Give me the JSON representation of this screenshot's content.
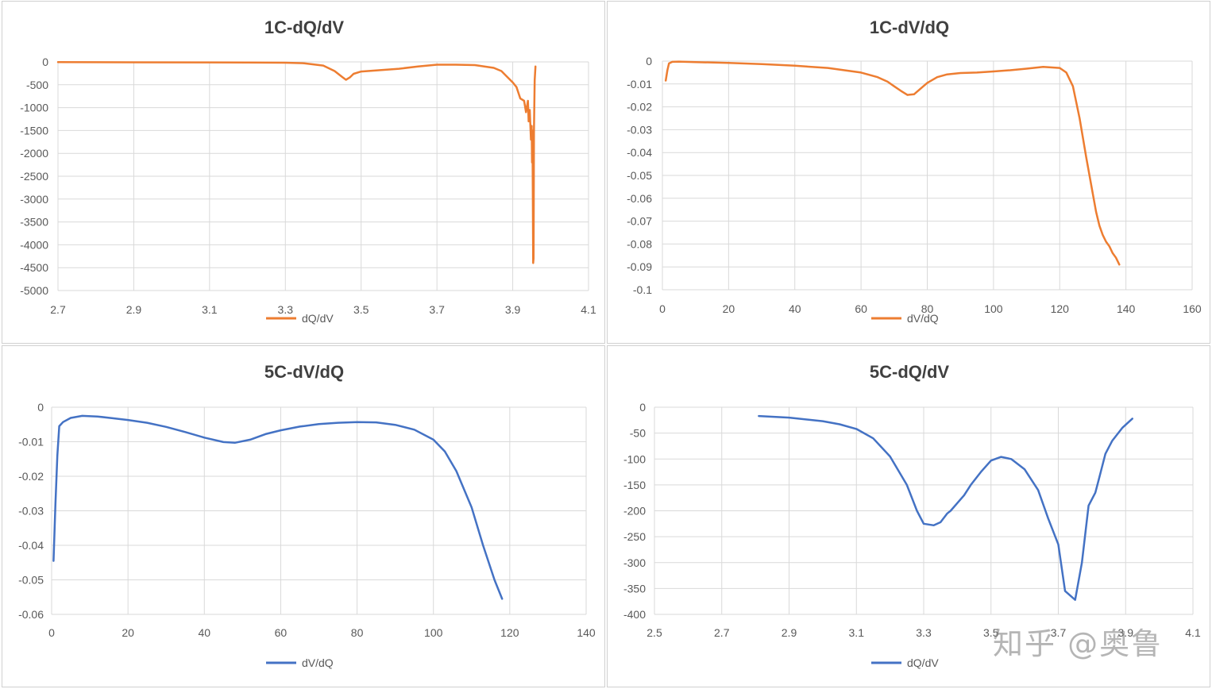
{
  "colors": {
    "orange": "#ED7D31",
    "blue": "#4472C4"
  },
  "watermark": "知乎 @奥鲁",
  "chart_data": [
    {
      "type": "line",
      "title": "1C-dQ/dV",
      "legend": "dQ/dV",
      "color": "#ED7D31",
      "xlim": [
        2.7,
        4.1
      ],
      "ylim": [
        -5000,
        0
      ],
      "xticks": [
        "2.7",
        "2.9",
        "3.1",
        "3.3",
        "3.5",
        "3.7",
        "3.9",
        "4.1"
      ],
      "yticks": [
        "0",
        "-500",
        "-1000",
        "-1500",
        "-2000",
        "-2500",
        "-3000",
        "-3500",
        "-4000",
        "-4500",
        "-5000"
      ],
      "x": [
        2.7,
        2.9,
        3.1,
        3.2,
        3.3,
        3.35,
        3.4,
        3.43,
        3.45,
        3.46,
        3.47,
        3.48,
        3.5,
        3.55,
        3.6,
        3.65,
        3.7,
        3.75,
        3.8,
        3.85,
        3.87,
        3.9,
        3.91,
        3.92,
        3.93,
        3.935,
        3.94,
        3.942,
        3.945,
        3.948,
        3.95,
        3.951,
        3.952,
        3.953,
        3.954,
        3.955,
        3.956,
        3.958,
        3.96
      ],
      "y": [
        -5,
        -8,
        -10,
        -12,
        -18,
        -30,
        -80,
        -200,
        -330,
        -390,
        -340,
        -260,
        -210,
        -180,
        -150,
        -100,
        -60,
        -60,
        -70,
        -130,
        -200,
        -450,
        -550,
        -800,
        -850,
        -1100,
        -850,
        -1300,
        -1050,
        -1700,
        -1400,
        -2200,
        -1500,
        -3000,
        -4400,
        -4300,
        -1500,
        -400,
        -100
      ]
    },
    {
      "type": "line",
      "title": "1C-dV/dQ",
      "legend": "dV/dQ",
      "color": "#ED7D31",
      "xlim": [
        0,
        160
      ],
      "ylim": [
        -0.1,
        0
      ],
      "xticks": [
        "0",
        "20",
        "40",
        "60",
        "80",
        "100",
        "120",
        "140",
        "160"
      ],
      "yticks": [
        "0",
        "-0.01",
        "-0.02",
        "-0.03",
        "-0.04",
        "-0.05",
        "-0.06",
        "-0.07",
        "-0.08",
        "-0.09",
        "-0.1"
      ],
      "x": [
        1,
        1.5,
        2,
        3,
        5,
        10,
        20,
        30,
        40,
        50,
        60,
        65,
        68,
        70,
        72,
        74,
        76,
        78,
        80,
        83,
        86,
        90,
        95,
        100,
        105,
        110,
        115,
        120,
        122,
        124,
        126,
        128,
        130,
        131,
        132,
        133,
        134,
        135,
        136,
        137,
        138
      ],
      "y": [
        -0.0085,
        -0.004,
        -0.001,
        -0.0003,
        -0.0002,
        -0.0004,
        -0.0008,
        -0.0013,
        -0.002,
        -0.003,
        -0.005,
        -0.007,
        -0.009,
        -0.011,
        -0.013,
        -0.0148,
        -0.0145,
        -0.012,
        -0.0095,
        -0.007,
        -0.0058,
        -0.0052,
        -0.005,
        -0.0045,
        -0.004,
        -0.0033,
        -0.0025,
        -0.003,
        -0.005,
        -0.011,
        -0.025,
        -0.042,
        -0.058,
        -0.066,
        -0.072,
        -0.076,
        -0.079,
        -0.081,
        -0.084,
        -0.086,
        -0.089
      ]
    },
    {
      "type": "line",
      "title": "5C-dV/dQ",
      "legend": "dV/dQ",
      "color": "#4472C4",
      "xlim": [
        0,
        140
      ],
      "ylim": [
        -0.06,
        0
      ],
      "xticks": [
        "0",
        "20",
        "40",
        "60",
        "80",
        "100",
        "120",
        "140"
      ],
      "yticks": [
        "0",
        "-0.01",
        "-0.02",
        "-0.03",
        "-0.04",
        "-0.05",
        "-0.06"
      ],
      "x": [
        0.5,
        1,
        1.5,
        2,
        3,
        5,
        8,
        12,
        16,
        20,
        25,
        30,
        35,
        40,
        45,
        48,
        52,
        56,
        60,
        65,
        70,
        75,
        80,
        85,
        90,
        95,
        100,
        103,
        106,
        110,
        113,
        116,
        118
      ],
      "y": [
        -0.0445,
        -0.028,
        -0.014,
        -0.0055,
        -0.0043,
        -0.0031,
        -0.0025,
        -0.0027,
        -0.0032,
        -0.0037,
        -0.0045,
        -0.0057,
        -0.0072,
        -0.0088,
        -0.0101,
        -0.0103,
        -0.0094,
        -0.0078,
        -0.0067,
        -0.0056,
        -0.0049,
        -0.0045,
        -0.0043,
        -0.0044,
        -0.0051,
        -0.0065,
        -0.0094,
        -0.0128,
        -0.0185,
        -0.029,
        -0.04,
        -0.05,
        -0.0555
      ]
    },
    {
      "type": "line",
      "title": "5C-dQ/dV",
      "legend": "dQ/dV",
      "color": "#4472C4",
      "xlim": [
        2.5,
        4.1
      ],
      "ylim": [
        -400,
        0
      ],
      "xticks": [
        "2.5",
        "2.7",
        "2.9",
        "3.1",
        "3.3",
        "3.5",
        "3.7",
        "3.9",
        "4.1"
      ],
      "yticks": [
        "0",
        "-50",
        "-100",
        "-150",
        "-200",
        "-250",
        "-300",
        "-350",
        "-400"
      ],
      "x": [
        2.81,
        2.9,
        3.0,
        3.05,
        3.1,
        3.15,
        3.2,
        3.25,
        3.28,
        3.3,
        3.33,
        3.35,
        3.37,
        3.38,
        3.4,
        3.42,
        3.44,
        3.47,
        3.5,
        3.53,
        3.56,
        3.6,
        3.64,
        3.67,
        3.7,
        3.72,
        3.75,
        3.77,
        3.79,
        3.81,
        3.82,
        3.83,
        3.84,
        3.86,
        3.89,
        3.92
      ],
      "y": [
        -17,
        -20,
        -27,
        -33,
        -42,
        -60,
        -95,
        -150,
        -200,
        -225,
        -228,
        -222,
        -205,
        -200,
        -185,
        -170,
        -150,
        -125,
        -103,
        -96,
        -100,
        -120,
        -160,
        -215,
        -265,
        -355,
        -372,
        -300,
        -190,
        -165,
        -140,
        -115,
        -90,
        -65,
        -40,
        -22
      ]
    }
  ]
}
